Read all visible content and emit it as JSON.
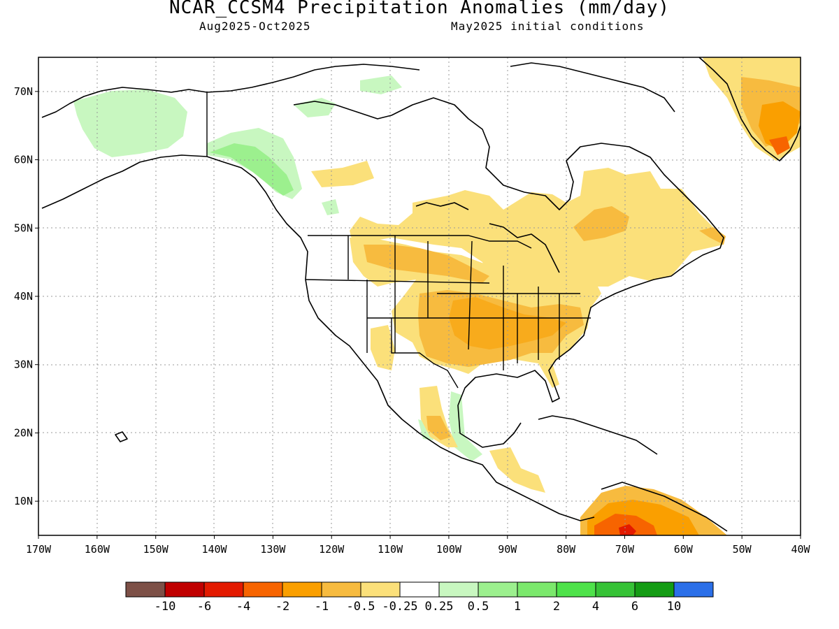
{
  "title": "NCAR_CCSM4 Precipitation Anomalies (mm/day)",
  "period": "Aug2025-Oct2025",
  "initial_conditions": "May2025 initial conditions",
  "map": {
    "lon_labels": [
      "170W",
      "160W",
      "150W",
      "140W",
      "130W",
      "120W",
      "110W",
      "100W",
      "90W",
      "80W",
      "70W",
      "60W",
      "50W",
      "40W"
    ],
    "lat_labels": [
      "70N",
      "60N",
      "50N",
      "40N",
      "30N",
      "20N",
      "10N"
    ],
    "lon_range": [
      -170,
      -40
    ],
    "lat_range": [
      5,
      75
    ],
    "grid": "dotted"
  },
  "colorbar": {
    "colors": [
      "#7d5047",
      "#c00000",
      "#e31a00",
      "#f76400",
      "#fa9f00",
      "#f7bb3f",
      "#fbe07a",
      "#ffffff",
      "#c8f7c0",
      "#9cf08e",
      "#7be86c",
      "#4ee24a",
      "#36c236",
      "#149c14",
      "#2b6fe8"
    ],
    "labels": [
      "-10",
      "-6",
      "-4",
      "-2",
      "-1",
      "-0.5",
      "-0.25",
      "0.25",
      "0.5",
      "1",
      "2",
      "4",
      "6",
      "10"
    ]
  },
  "anomaly_regions": [
    {
      "name": "alaska-interior-wet",
      "level": 0.25
    },
    {
      "name": "alaska-panhandle-wet",
      "level": 0.5
    },
    {
      "name": "northern-quebec-wet",
      "level": 0.25
    },
    {
      "name": "greenland-dry",
      "level": -0.5
    },
    {
      "name": "greenland-dry-strong",
      "level": -2
    },
    {
      "name": "canada-dry",
      "level": -0.25
    },
    {
      "name": "us-central-dry",
      "level": -0.5
    },
    {
      "name": "us-central-dry-strong",
      "level": -1
    },
    {
      "name": "mexico-dry",
      "level": -0.25
    },
    {
      "name": "south-america-dry",
      "level": -2
    },
    {
      "name": "south-america-dry-strong",
      "level": -6
    }
  ]
}
